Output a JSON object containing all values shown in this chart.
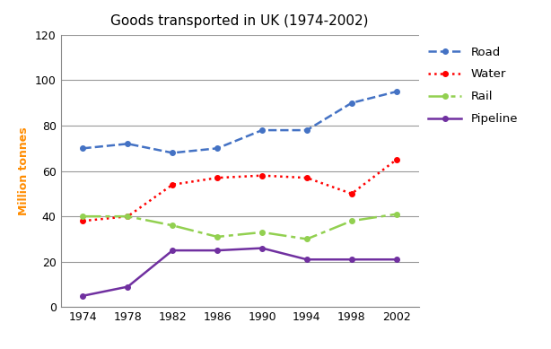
{
  "title": "Goods transported in UK (1974-2002)",
  "ylabel": "Million tonnes",
  "years": [
    1974,
    1978,
    1982,
    1986,
    1990,
    1994,
    1998,
    2002
  ],
  "series": {
    "Road": {
      "values": [
        70,
        72,
        68,
        70,
        78,
        78,
        90,
        95
      ],
      "color": "#4472C4",
      "linestyle": "--",
      "marker": "o",
      "markersize": 4,
      "linewidth": 1.8
    },
    "Water": {
      "values": [
        38,
        40,
        54,
        57,
        58,
        57,
        50,
        65
      ],
      "color": "#FF0000",
      "linestyle": ":",
      "marker": "o",
      "markersize": 4,
      "linewidth": 1.8
    },
    "Rail": {
      "values": [
        40,
        40,
        36,
        31,
        33,
        30,
        38,
        41
      ],
      "color": "#92D050",
      "linestyle": "dashdot",
      "marker": "o",
      "markersize": 4,
      "linewidth": 1.8
    },
    "Pipeline": {
      "values": [
        5,
        9,
        25,
        25,
        26,
        21,
        21,
        21
      ],
      "color": "#7030A0",
      "linestyle": "-",
      "marker": "o",
      "markersize": 4,
      "linewidth": 1.8
    }
  },
  "ylim": [
    0,
    120
  ],
  "yticks": [
    0,
    20,
    40,
    60,
    80,
    100,
    120
  ],
  "xticks": [
    1974,
    1978,
    1982,
    1986,
    1990,
    1994,
    1998,
    2002
  ],
  "background_color": "#ffffff",
  "plot_bg_color": "#ffffff",
  "grid_color": "#999999",
  "title_fontsize": 11,
  "ylabel_color": "#FF8C00",
  "ylabel_fontsize": 9,
  "tick_fontsize": 9
}
